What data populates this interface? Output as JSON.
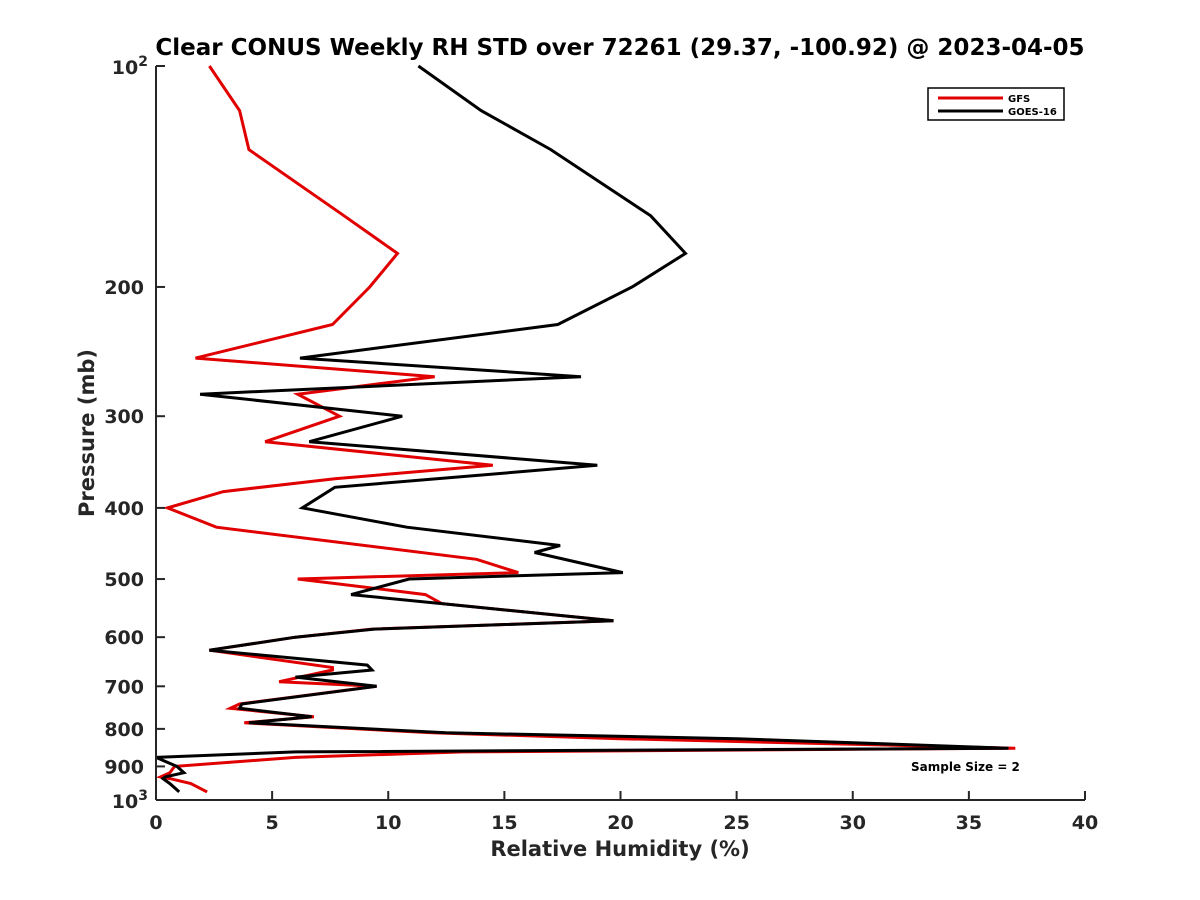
{
  "chart_data": {
    "type": "line",
    "title": "Clear CONUS Weekly RH STD over 72261 (29.37, -100.92) @ 2023-04-05",
    "xlabel": "Relative Humidity (%)",
    "ylabel": "Pressure (mb)",
    "xlim": [
      0,
      40
    ],
    "ylim": [
      100,
      1000
    ],
    "yscale": "log",
    "y_reversed": true,
    "xticks": [
      "0",
      "5",
      "10",
      "15",
      "20",
      "25",
      "30",
      "35",
      "40"
    ],
    "yticks": [
      {
        "value": 100,
        "base": "10",
        "exp": "2"
      },
      {
        "value": 200,
        "label": "200"
      },
      {
        "value": 300,
        "label": "300"
      },
      {
        "value": 400,
        "label": "400"
      },
      {
        "value": 500,
        "label": "500"
      },
      {
        "value": 600,
        "label": "600"
      },
      {
        "value": 700,
        "label": "700"
      },
      {
        "value": 800,
        "label": "800"
      },
      {
        "value": 900,
        "label": "900"
      },
      {
        "value": 1000,
        "base": "10",
        "exp": "3"
      }
    ],
    "legend_position": "top-right",
    "grid": false,
    "annotation": "Sample Size = 2",
    "series": [
      {
        "name": "GFS",
        "color": "#e00000",
        "points": [
          [
            2.3,
            100
          ],
          [
            3.6,
            115
          ],
          [
            4.0,
            130
          ],
          [
            8.1,
            160
          ],
          [
            10.4,
            180
          ],
          [
            9.2,
            200
          ],
          [
            7.6,
            225
          ],
          [
            1.7,
            250
          ],
          [
            12.0,
            265
          ],
          [
            6.1,
            280
          ],
          [
            7.9,
            300
          ],
          [
            4.7,
            325
          ],
          [
            14.5,
            350
          ],
          [
            7.7,
            365
          ],
          [
            2.9,
            380
          ],
          [
            0.5,
            400
          ],
          [
            2.6,
            425
          ],
          [
            13.8,
            470
          ],
          [
            15.6,
            490
          ],
          [
            6.1,
            500
          ],
          [
            11.6,
            525
          ],
          [
            12.3,
            540
          ],
          [
            19.7,
            570
          ],
          [
            9.3,
            585
          ],
          [
            6.0,
            600
          ],
          [
            2.3,
            625
          ],
          [
            7.6,
            660
          ],
          [
            7.6,
            665
          ],
          [
            5.3,
            690
          ],
          [
            9.5,
            700
          ],
          [
            3.6,
            740
          ],
          [
            3.2,
            750
          ],
          [
            6.8,
            770
          ],
          [
            3.8,
            785
          ],
          [
            11.9,
            810
          ],
          [
            20.0,
            825
          ],
          [
            37.0,
            850
          ],
          [
            13.2,
            860
          ],
          [
            6.0,
            875
          ],
          [
            0.8,
            900
          ],
          [
            0.6,
            918
          ],
          [
            0.2,
            930
          ],
          [
            0.6,
            935
          ],
          [
            1.5,
            950
          ],
          [
            2.2,
            975
          ]
        ]
      },
      {
        "name": "GOES-16",
        "color": "#000000",
        "points": [
          [
            11.3,
            100
          ],
          [
            14.0,
            115
          ],
          [
            17.0,
            130
          ],
          [
            21.3,
            160
          ],
          [
            22.8,
            180
          ],
          [
            20.5,
            200
          ],
          [
            17.3,
            225
          ],
          [
            6.2,
            250
          ],
          [
            18.3,
            265
          ],
          [
            1.9,
            280
          ],
          [
            10.6,
            300
          ],
          [
            6.6,
            325
          ],
          [
            19.0,
            350
          ],
          [
            7.7,
            375
          ],
          [
            6.3,
            400
          ],
          [
            10.8,
            425
          ],
          [
            17.4,
            450
          ],
          [
            16.3,
            460
          ],
          [
            20.1,
            490
          ],
          [
            10.9,
            500
          ],
          [
            8.4,
            525
          ],
          [
            12.3,
            540
          ],
          [
            19.7,
            570
          ],
          [
            9.4,
            585
          ],
          [
            6.0,
            600
          ],
          [
            2.3,
            625
          ],
          [
            9.1,
            655
          ],
          [
            9.3,
            665
          ],
          [
            6.0,
            680
          ],
          [
            9.5,
            700
          ],
          [
            3.7,
            740
          ],
          [
            3.6,
            750
          ],
          [
            6.7,
            770
          ],
          [
            4.0,
            785
          ],
          [
            12.5,
            810
          ],
          [
            25.0,
            825
          ],
          [
            36.7,
            850
          ],
          [
            6.0,
            860
          ],
          [
            0.0,
            875
          ],
          [
            0.9,
            900
          ],
          [
            1.2,
            918
          ],
          [
            0.4,
            930
          ],
          [
            0.3,
            935
          ],
          [
            0.6,
            950
          ],
          [
            1.0,
            975
          ]
        ]
      }
    ]
  }
}
